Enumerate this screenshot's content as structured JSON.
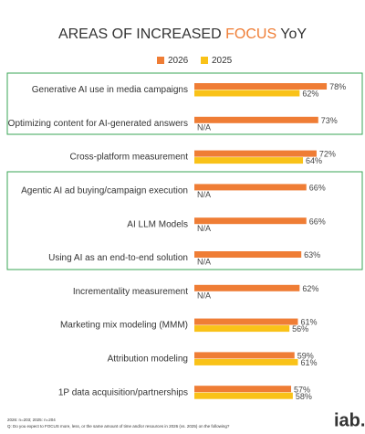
{
  "chart_data": {
    "type": "bar",
    "orientation": "horizontal",
    "title": [
      "AREAS OF INCREASED",
      "FOCUS",
      "YoY"
    ],
    "categories": [
      "Generative AI use in media campaigns",
      "Optimizing content for AI-generated answers",
      "Cross-platform measurement",
      "Agentic AI ad buying/campaign execution",
      "AI LLM Models",
      "Using AI as an end-to-end solution",
      "Incrementality measurement",
      "Marketing mix modeling (MMM)",
      "Attribution modeling",
      "1P data acquisition/partnerships"
    ],
    "series": [
      {
        "name": "2026",
        "color": "#ef7d35",
        "values": [
          78,
          73,
          72,
          66,
          66,
          63,
          62,
          61,
          59,
          57
        ],
        "value_labels": [
          "78%",
          "73%",
          "72%",
          "66%",
          "66%",
          "63%",
          "62%",
          "61%",
          "59%",
          "57%"
        ]
      },
      {
        "name": "2025",
        "color": "#f9c218",
        "values": [
          62,
          null,
          64,
          null,
          null,
          null,
          null,
          56,
          61,
          58
        ],
        "value_labels": [
          "62%",
          "N/A",
          "64%",
          "N/A",
          "N/A",
          "N/A",
          "N/A",
          "56%",
          "61%",
          "58%"
        ]
      }
    ],
    "footnotes": [
      "2026: n=203; 2025: n=204",
      "Q: Do you expect to FOCUS more, less, or the same amount of time and/or resources in 2026 (vs. 2025) on the following?"
    ],
    "logo": "iab."
  }
}
